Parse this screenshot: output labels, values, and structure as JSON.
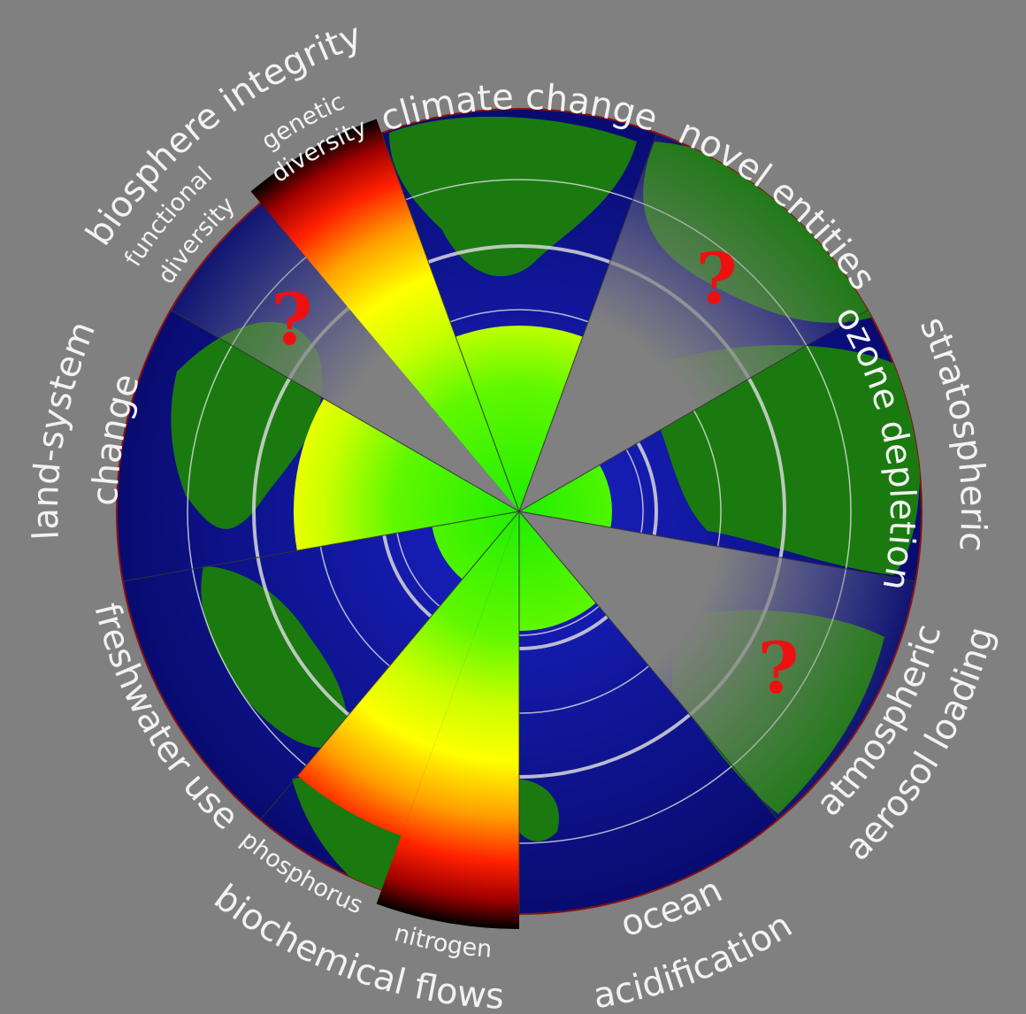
{
  "labels": {
    "climate_change": [
      "climate change"
    ],
    "novel_entities": [
      "novel entities"
    ],
    "ozone": [
      "stratospheric",
      "ozone depletion"
    ],
    "aerosol": [
      "atmospheric",
      "aerosol loading"
    ],
    "ocean": [
      "ocean",
      "acidification"
    ],
    "biochemical": [
      "biochemical flows"
    ],
    "nitrogen": [
      "nitrogen"
    ],
    "phosphorus": [
      "phosphorus"
    ],
    "freshwater": [
      "freshwater use"
    ],
    "land": [
      "land-system",
      "change"
    ],
    "biosphere": [
      "biosphere integrity"
    ],
    "functional": [
      "functional",
      "diversity"
    ],
    "genetic": [
      "genetic",
      "diversity"
    ]
  },
  "unknown_marker": "?"
}
